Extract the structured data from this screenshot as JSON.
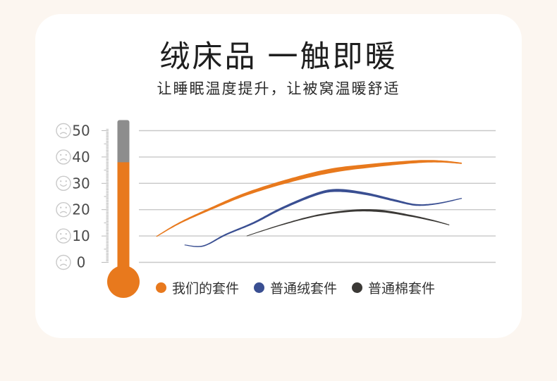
{
  "header": {
    "title": "绒床品 一触即暖",
    "subtitle": "让睡眠温度提升，让被窝温暖舒适"
  },
  "thermometer": {
    "fill_value": 38,
    "top_value": 54,
    "fill_color": "#e8791d",
    "empty_color": "#8d8d8d"
  },
  "scale": {
    "labels": [
      {
        "value": 50,
        "mood": "sad"
      },
      {
        "value": 40,
        "mood": "sad"
      },
      {
        "value": 30,
        "mood": "happy"
      },
      {
        "value": 20,
        "mood": "sad"
      },
      {
        "value": 10,
        "mood": "sad"
      },
      {
        "value": 0,
        "mood": "sad"
      }
    ]
  },
  "chart_data": {
    "type": "line",
    "title": "",
    "xlabel": "",
    "ylabel": "",
    "ylim": [
      0,
      50
    ],
    "ytick_step": 10,
    "grid": "horizontal",
    "legend_position": "bottom",
    "series": [
      {
        "name": "我们的套件",
        "color": "#e8791d",
        "taper": [
          1.2,
          6.4,
          1.8
        ],
        "points": [
          [
            0.049,
            9.8
          ],
          [
            0.115,
            15
          ],
          [
            0.204,
            20.5
          ],
          [
            0.302,
            26
          ],
          [
            0.421,
            31
          ],
          [
            0.54,
            34.8
          ],
          [
            0.658,
            36.8
          ],
          [
            0.777,
            38.2
          ],
          [
            0.846,
            38.3
          ],
          [
            0.905,
            37.6
          ]
        ]
      },
      {
        "name": "普通绒套件",
        "color": "#3a4f92",
        "taper": [
          1.1,
          4.2,
          1.2
        ],
        "points": [
          [
            0.128,
            6.6
          ],
          [
            0.18,
            6.2
          ],
          [
            0.243,
            10.5
          ],
          [
            0.322,
            15
          ],
          [
            0.401,
            20.5
          ],
          [
            0.5,
            26
          ],
          [
            0.559,
            27.3
          ],
          [
            0.638,
            26
          ],
          [
            0.717,
            23.5
          ],
          [
            0.777,
            21.8
          ],
          [
            0.836,
            22.3
          ],
          [
            0.905,
            24.3
          ]
        ]
      },
      {
        "name": "普通棉套件",
        "color": "#3b3936",
        "taper": [
          0.9,
          3.4,
          1.1
        ],
        "points": [
          [
            0.302,
            10
          ],
          [
            0.401,
            14.3
          ],
          [
            0.5,
            17.8
          ],
          [
            0.599,
            19.6
          ],
          [
            0.678,
            19.5
          ],
          [
            0.757,
            17.8
          ],
          [
            0.826,
            15.8
          ],
          [
            0.87,
            14.2
          ]
        ]
      }
    ]
  },
  "colors": {
    "page_background": "#fcf6f0",
    "card_background": "#ffffff",
    "gridline": "#c8c8c8",
    "ruler": "#b3b3b3",
    "scale_text": "#4b4b4b",
    "face": "#c9c9c9",
    "title_text": "#1e1e1e",
    "legend_text": "#333333"
  }
}
